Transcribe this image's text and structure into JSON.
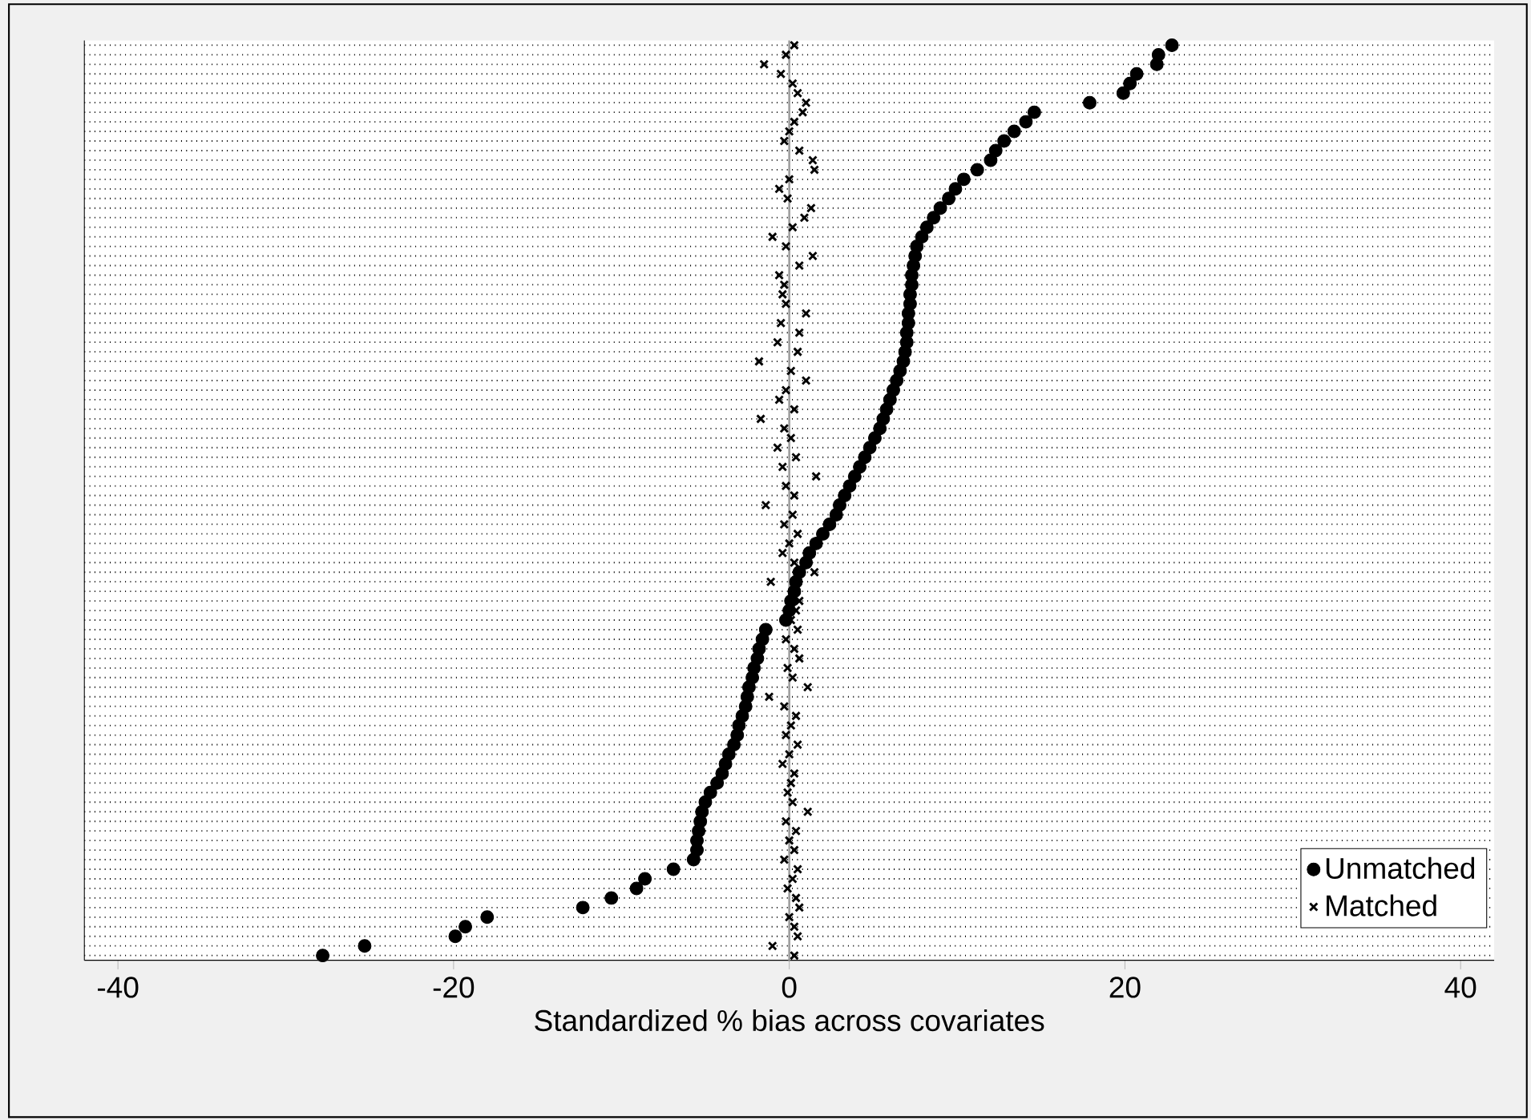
{
  "chart_data": {
    "type": "scatter",
    "orientation": "horizontal",
    "xlabel": "Standardized % bias across covariates",
    "categories": [
      null,
      null,
      null,
      null,
      null,
      null,
      null,
      null,
      null,
      null,
      null,
      null,
      null,
      null,
      null,
      null,
      null,
      null,
      null,
      null,
      null,
      null,
      null,
      null,
      null,
      null,
      null,
      null,
      null,
      null,
      null,
      null,
      null,
      null,
      null,
      null,
      null,
      null,
      null,
      null,
      null,
      null,
      null,
      null,
      null,
      null,
      null,
      null,
      null,
      null,
      null,
      null,
      null,
      null,
      null,
      null,
      null,
      null,
      null,
      null,
      null,
      null,
      null,
      null,
      null,
      null,
      null,
      null,
      null,
      null,
      null,
      null,
      null,
      null,
      null,
      null,
      null,
      null,
      null,
      null,
      null,
      null,
      null,
      null,
      null,
      null,
      null,
      null,
      null,
      null,
      null,
      null,
      null,
      null,
      null,
      null
    ],
    "xlim": [
      -42,
      42
    ],
    "xticks": [
      -40,
      -20,
      0,
      20,
      40
    ],
    "ref_lines": [
      {
        "axis": "x",
        "value": 0,
        "color": "#a0a0a0"
      }
    ],
    "grid": "y",
    "legend": "bottom right",
    "series": [
      {
        "name": "Unmatched",
        "color": "#000000",
        "marker": "circle",
        "values": [
          22.8,
          22.0,
          21.9,
          20.7,
          20.3,
          19.9,
          17.9,
          14.6,
          14.1,
          13.4,
          12.8,
          12.3,
          12.0,
          11.2,
          10.4,
          9.9,
          9.5,
          9.0,
          8.6,
          8.2,
          7.9,
          7.6,
          7.5,
          7.4,
          7.3,
          7.3,
          7.2,
          7.2,
          7.1,
          7.1,
          7.0,
          7.0,
          6.9,
          6.8,
          6.6,
          6.4,
          6.2,
          6.0,
          5.8,
          5.6,
          5.4,
          5.1,
          4.8,
          4.5,
          4.2,
          3.9,
          3.6,
          3.3,
          3.0,
          2.8,
          2.4,
          2.0,
          1.6,
          1.2,
          1.0,
          0.6,
          0.4,
          0.3,
          0.1,
          0.0,
          -0.2,
          -1.4,
          -1.6,
          -1.8,
          -1.9,
          -2.1,
          -2.2,
          -2.4,
          -2.5,
          -2.6,
          -2.8,
          -3.0,
          -3.1,
          -3.3,
          -3.6,
          -3.8,
          -4.0,
          -4.3,
          -4.7,
          -5.0,
          -5.2,
          -5.3,
          -5.4,
          -5.5,
          -5.5,
          -5.7,
          -6.9,
          -8.6,
          -9.1,
          -10.6,
          -12.3,
          -18.0,
          -19.3,
          -19.9,
          -25.3,
          -27.8
        ]
      },
      {
        "name": "Matched",
        "color": "#000000",
        "marker": "cross",
        "values": [
          0.3,
          -0.2,
          -1.5,
          -0.5,
          0.2,
          0.5,
          1.0,
          0.8,
          0.3,
          0.0,
          -0.3,
          0.6,
          1.4,
          1.5,
          0.0,
          -0.6,
          -0.1,
          1.3,
          0.9,
          0.2,
          -1.0,
          -0.2,
          1.4,
          0.6,
          -0.6,
          -0.3,
          -0.4,
          -0.2,
          1.0,
          -0.5,
          0.6,
          -0.7,
          0.5,
          -1.8,
          0.1,
          1.0,
          -0.2,
          -0.6,
          0.3,
          -1.7,
          -0.3,
          0.1,
          -0.7,
          0.4,
          -0.4,
          1.6,
          -0.2,
          0.3,
          -1.4,
          0.2,
          -0.3,
          0.5,
          0.0,
          -0.4,
          0.3,
          1.5,
          -1.1,
          null,
          0.6,
          0.4,
          0.1,
          0.5,
          -0.2,
          0.3,
          0.6,
          -0.1,
          0.2,
          1.1,
          -1.2,
          -0.3,
          0.4,
          0.1,
          -0.2,
          0.5,
          0.0,
          -0.4,
          0.3,
          0.1,
          -0.1,
          0.2,
          1.1,
          -0.2,
          0.4,
          0.0,
          0.3,
          -0.3,
          0.5,
          0.2,
          -0.1,
          0.4,
          0.6,
          0.0,
          0.3,
          0.5,
          -1.0,
          0.3
        ]
      }
    ]
  }
}
